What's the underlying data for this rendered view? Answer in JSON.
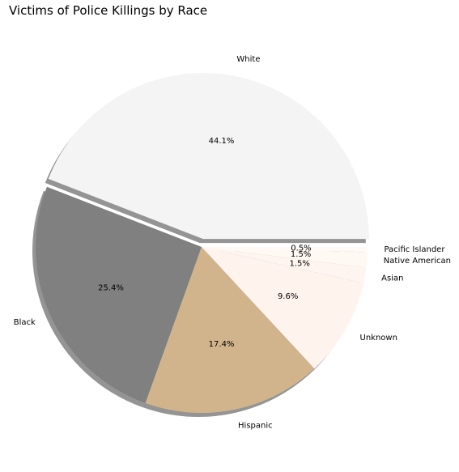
{
  "chart_data": {
    "type": "pie",
    "title": "Victims of Police Killings by Race",
    "start_angle_deg": 0,
    "direction": "counterclockwise",
    "shadow": true,
    "exploded": [
      "White"
    ],
    "slices": [
      {
        "label": "White",
        "value": 44.1,
        "pct_label": "44.1%",
        "color": "#f4f4f4"
      },
      {
        "label": "Black",
        "value": 25.4,
        "pct_label": "25.4%",
        "color": "#808080"
      },
      {
        "label": "Hispanic",
        "value": 17.4,
        "pct_label": "17.4%",
        "color": "#d2b48c"
      },
      {
        "label": "Unknown",
        "value": 9.6,
        "pct_label": "9.6%",
        "color": "#fff3ee"
      },
      {
        "label": "Asian",
        "value": 1.5,
        "pct_label": "1.5%",
        "color": "#fff5f0"
      },
      {
        "label": "Native American",
        "value": 1.5,
        "pct_label": "1.5%",
        "color": "#fff8f3"
      },
      {
        "label": "Pacific Islander",
        "value": 0.5,
        "pct_label": "0.5%",
        "color": "#fffaf5"
      }
    ]
  }
}
